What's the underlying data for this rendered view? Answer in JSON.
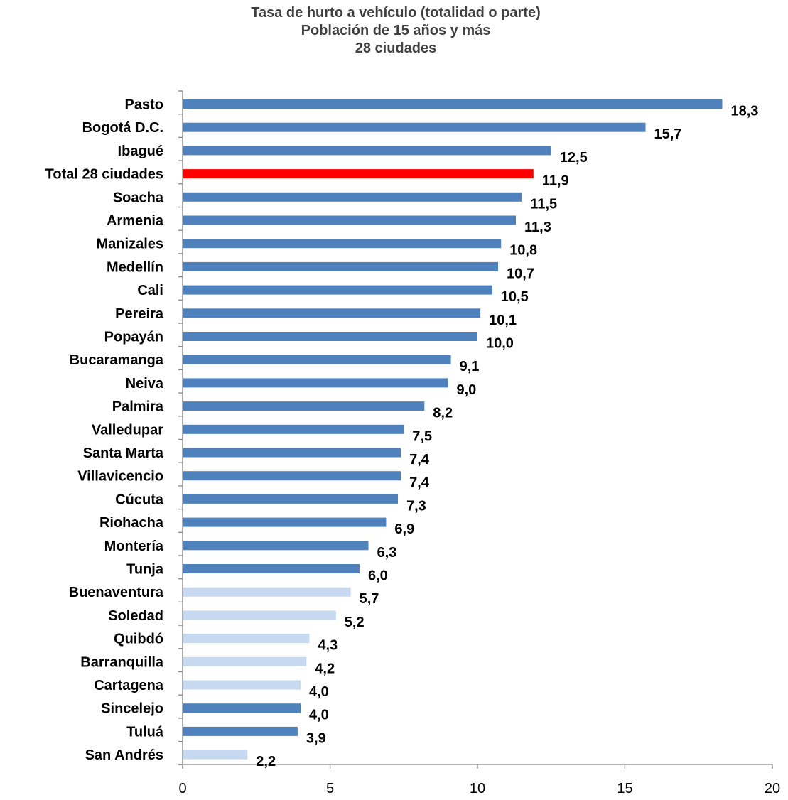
{
  "chart_data": {
    "type": "bar",
    "orientation": "horizontal",
    "title": [
      "Tasa de hurto a vehículo (totalidad o parte)",
      "Población de 15 años y más",
      "28 ciudades"
    ],
    "xlim": [
      0,
      20
    ],
    "xticks": [
      0,
      5,
      10,
      15,
      20
    ],
    "grid": false,
    "legend": "none",
    "colors": {
      "primary": "#4f81bd",
      "light": "#c6d9f1",
      "highlight": "#ff0000"
    },
    "bars": [
      {
        "category": "Pasto",
        "value": 18.3,
        "label": "18,3",
        "style": "primary"
      },
      {
        "category": "Bogotá D.C.",
        "value": 15.7,
        "label": "15,7",
        "style": "primary"
      },
      {
        "category": "Ibagué",
        "value": 12.5,
        "label": "12,5",
        "style": "primary"
      },
      {
        "category": "Total 28 ciudades",
        "value": 11.9,
        "label": "11,9",
        "style": "highlight"
      },
      {
        "category": "Soacha",
        "value": 11.5,
        "label": "11,5",
        "style": "primary"
      },
      {
        "category": "Armenia",
        "value": 11.3,
        "label": "11,3",
        "style": "primary"
      },
      {
        "category": "Manizales",
        "value": 10.8,
        "label": "10,8",
        "style": "primary"
      },
      {
        "category": "Medellín",
        "value": 10.7,
        "label": "10,7",
        "style": "primary"
      },
      {
        "category": "Cali",
        "value": 10.5,
        "label": "10,5",
        "style": "primary"
      },
      {
        "category": "Pereira",
        "value": 10.1,
        "label": "10,1",
        "style": "primary"
      },
      {
        "category": "Popayán",
        "value": 10.0,
        "label": "10,0",
        "style": "primary"
      },
      {
        "category": "Bucaramanga",
        "value": 9.1,
        "label": "9,1",
        "style": "primary"
      },
      {
        "category": "Neiva",
        "value": 9.0,
        "label": "9,0",
        "style": "primary"
      },
      {
        "category": "Palmira",
        "value": 8.2,
        "label": "8,2",
        "style": "primary"
      },
      {
        "category": "Valledupar",
        "value": 7.5,
        "label": "7,5",
        "style": "primary"
      },
      {
        "category": "Santa Marta",
        "value": 7.4,
        "label": "7,4",
        "style": "primary"
      },
      {
        "category": "Villavicencio",
        "value": 7.4,
        "label": "7,4",
        "style": "primary"
      },
      {
        "category": "Cúcuta",
        "value": 7.3,
        "label": "7,3",
        "style": "primary"
      },
      {
        "category": "Riohacha",
        "value": 6.9,
        "label": "6,9",
        "style": "primary"
      },
      {
        "category": "Montería",
        "value": 6.3,
        "label": "6,3",
        "style": "primary"
      },
      {
        "category": "Tunja",
        "value": 6.0,
        "label": "6,0",
        "style": "primary"
      },
      {
        "category": "Buenaventura",
        "value": 5.7,
        "label": "5,7",
        "style": "light"
      },
      {
        "category": "Soledad",
        "value": 5.2,
        "label": "5,2",
        "style": "light"
      },
      {
        "category": "Quibdó",
        "value": 4.3,
        "label": "4,3",
        "style": "light"
      },
      {
        "category": "Barranquilla",
        "value": 4.2,
        "label": "4,2",
        "style": "light"
      },
      {
        "category": "Cartagena",
        "value": 4.0,
        "label": "4,0",
        "style": "light"
      },
      {
        "category": "Sincelejo",
        "value": 4.0,
        "label": "4,0",
        "style": "primary"
      },
      {
        "category": "Tuluá",
        "value": 3.9,
        "label": "3,9",
        "style": "primary"
      },
      {
        "category": "San Andrés",
        "value": 2.2,
        "label": "2,2",
        "style": "light"
      }
    ]
  }
}
